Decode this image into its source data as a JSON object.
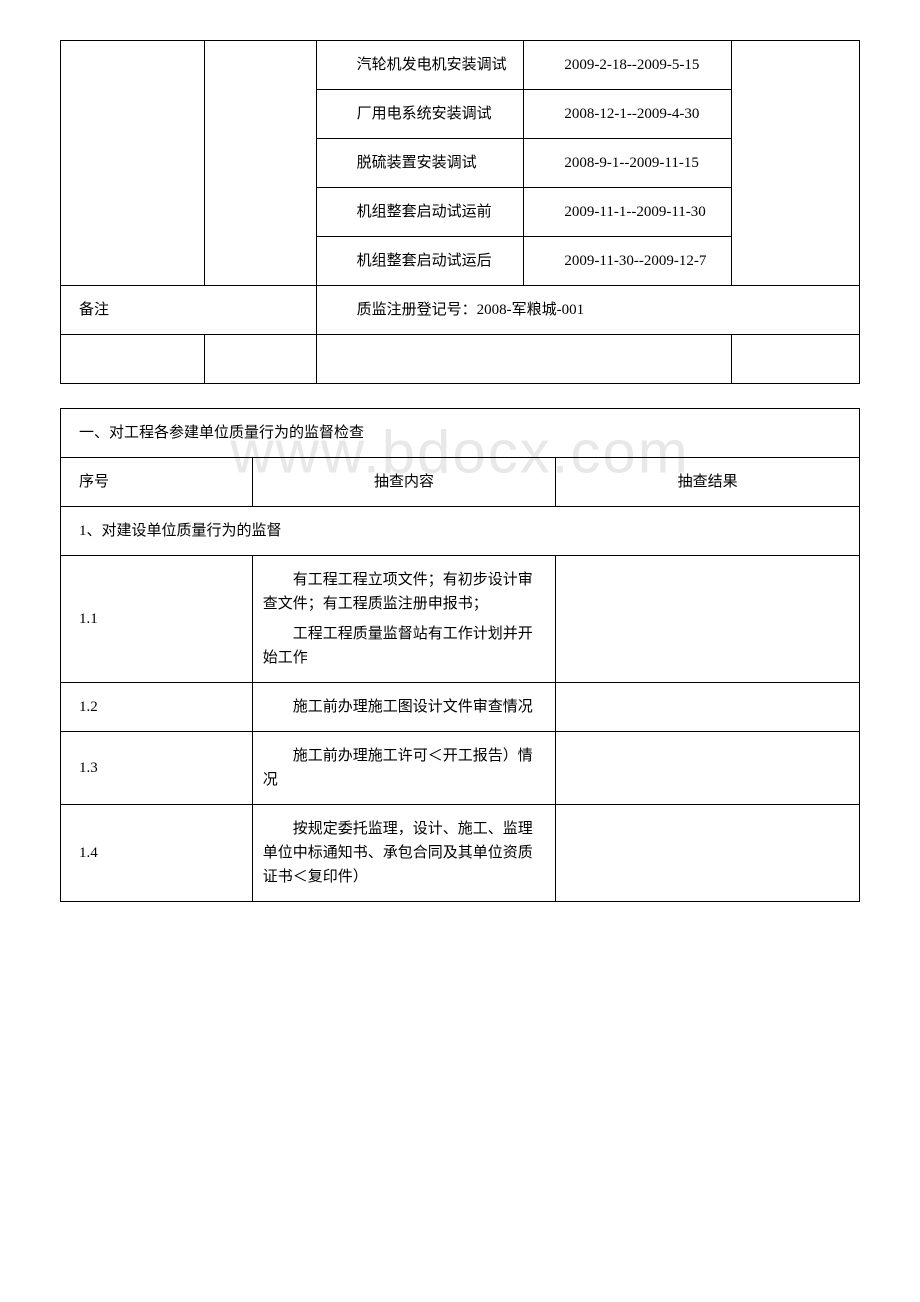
{
  "watermark": "www.bdocx.com",
  "table1": {
    "schedule_rows": [
      {
        "item": "汽轮机发电机安装调试",
        "date": "2009-2-18--2009-5-15"
      },
      {
        "item": "厂用电系统安装调试",
        "date": "2008-12-1--2009-4-30"
      },
      {
        "item": "脱硫装置安装调试",
        "date": "2008-9-1--2009-11-15"
      },
      {
        "item": "机组整套启动试运前",
        "date": "2009-11-1--2009-11-30"
      },
      {
        "item": "机组整套启动试运后",
        "date": "2009-11-30--2009-12-7"
      }
    ],
    "remark_label": "备注",
    "remark_value": "质监注册登记号：2008-军粮城-001"
  },
  "table2": {
    "section_title": "一、对工程各参建单位质量行为的监督检查",
    "headers": {
      "seq": "序号",
      "content": "抽查内容",
      "result": "抽查结果"
    },
    "subsection": "1、对建设单位质量行为的监督",
    "rows": [
      {
        "seq": "1.1",
        "paras": [
          "有工程工程立项文件；有初步设计审查文件；有工程质监注册申报书；",
          "工程工程质量监督站有工作计划并开始工作"
        ]
      },
      {
        "seq": "1.2",
        "paras": [
          "施工前办理施工图设计文件审查情况"
        ]
      },
      {
        "seq": "1.3",
        "paras": [
          "施工前办理施工许可＜开工报告）情况"
        ]
      },
      {
        "seq": "1.4",
        "paras": [
          "按规定委托监理，设计、施工、监理单位中标通知书、承包合同及其单位资质证书＜复印件）"
        ]
      }
    ]
  }
}
